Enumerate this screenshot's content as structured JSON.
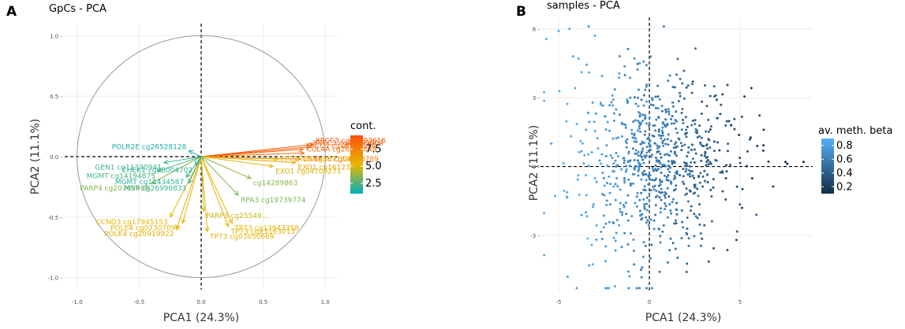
{
  "panels": {
    "a": {
      "letter": "A",
      "title": "GpCs - PCA"
    },
    "b": {
      "letter": "B",
      "title": "samples - PCA"
    }
  },
  "chart_data": [
    {
      "type": "scatter",
      "subtype": "pca-variable-correlation-circle",
      "title": "GpCs - PCA",
      "xlabel": "PCA1 (24.3%)",
      "ylabel": "PCA2 (11.1%)",
      "xlim": [
        -1.1,
        1.1
      ],
      "ylim": [
        -1.1,
        1.1
      ],
      "x_ticks": [
        "-1.0",
        "-0.5",
        "0.0",
        "0.5",
        "1.0"
      ],
      "y_ticks": [
        "-1.0 -",
        "-0.5 -",
        "0.0 -",
        "0.5 -",
        "1.0 -"
      ],
      "grid": true,
      "unit_circle": true,
      "legend": {
        "title": "cont.",
        "ticks": [
          "7.5",
          "5.0",
          "2.5"
        ],
        "placement": "right",
        "range": [
          1,
          9.5
        ],
        "colors": [
          "#00AFBB",
          "#E7B800",
          "#FC4E07"
        ]
      },
      "vectors": [
        {
          "label": "XRCC3 cg23193616",
          "x": 0.9,
          "y": 0.1,
          "contrib": 9.2
        },
        {
          "label": "XRCC3 cg25999604",
          "x": 0.88,
          "y": 0.08,
          "contrib": 9.0
        },
        {
          "label": "XRCC3 cg18597188",
          "x": 0.82,
          "y": 0.06,
          "contrib": 8.6
        },
        {
          "label": "CUL4A cg26825849",
          "x": 0.83,
          "y": 0.03,
          "contrib": 8.4
        },
        {
          "label": "GSNK1E cg04728789",
          "x": 0.8,
          "y": -0.02,
          "contrib": 7.8
        },
        {
          "label": "EXO1 cg16123177",
          "x": 0.76,
          "y": -0.05,
          "contrib": 6.2
        },
        {
          "label": "PPP1R19 cg00775920",
          "x": 0.62,
          "y": -0.02,
          "contrib": 5.4
        },
        {
          "label": "EXO1 cg04706271",
          "x": 0.58,
          "y": -0.08,
          "contrib": 5.0
        },
        {
          "label": "cg14289863",
          "x": 0.4,
          "y": -0.18,
          "contrib": 3.6
        },
        {
          "label": "RPA3 cg19739774",
          "x": 0.3,
          "y": -0.32,
          "contrib": 3.3
        },
        {
          "label": "TP73 cg13943358",
          "x": 0.25,
          "y": -0.55,
          "contrib": 5.3
        },
        {
          "label": "TP73 cg23163013",
          "x": 0.22,
          "y": -0.58,
          "contrib": 5.6
        },
        {
          "label": "TP73 cg03050669",
          "x": 0.05,
          "y": -0.62,
          "contrib": 5.5
        },
        {
          "label": "PARP3 cg25549...",
          "x": 0.02,
          "y": -0.45,
          "contrib": 4.8
        },
        {
          "label": "POLE4 cg02307096",
          "x": -0.15,
          "y": -0.55,
          "contrib": 5.5
        },
        {
          "label": "POLE4 cg20919922",
          "x": -0.2,
          "y": -0.6,
          "contrib": 5.8
        },
        {
          "label": "CCND3 cg17945153",
          "x": -0.25,
          "y": -0.5,
          "contrib": 5.2
        },
        {
          "label": "PARP4 cg20765408",
          "x": -0.4,
          "y": -0.22,
          "contrib": 3.4
        },
        {
          "label": "MVP cg26990833",
          "x": -0.1,
          "y": -0.22,
          "contrib": 2.0
        },
        {
          "label": "MGMT cg14194875",
          "x": -0.35,
          "y": -0.12,
          "contrib": 2.4
        },
        {
          "label": "MGMT cg12434587",
          "x": -0.12,
          "y": -0.17,
          "contrib": 1.7
        },
        {
          "label": "GEN1 cg11330941",
          "x": -0.3,
          "y": -0.05,
          "contrib": 2.0
        },
        {
          "label": "POLR2E cg26528128",
          "x": -0.1,
          "y": 0.05,
          "contrib": 1.5
        },
        {
          "label": "CHEK1 cg06004702",
          "x": -0.05,
          "y": -0.07,
          "contrib": 1.9
        }
      ]
    },
    {
      "type": "scatter",
      "title": "samples - PCA",
      "xlabel": "PCA1 (24.3%)",
      "ylabel": "PCA2 (11.1%)",
      "xlim": [
        -6,
        9
      ],
      "ylim": [
        -5.5,
        6.5
      ],
      "x_ticks": [
        "-5",
        "0",
        "5"
      ],
      "y_ticks": [
        "6 -",
        "3 -",
        "0 -",
        "-3 -"
      ],
      "grid": true,
      "legend": {
        "title": "av. meth. beta",
        "ticks": [
          "0.8",
          "0.6",
          "0.4",
          "0.2"
        ],
        "placement": "right",
        "range": [
          0.1,
          0.9
        ],
        "colors": [
          "#132B43",
          "#56B1F7"
        ]
      },
      "point_summary": "about 800 sample points, lighter blue toward negative PCA1, darker navy toward positive PCA1",
      "points": [
        {
          "x": -5.0,
          "y": 5.9,
          "beta": 0.85
        },
        {
          "x": -4.4,
          "y": 6.0,
          "beta": 0.85
        },
        {
          "x": -3.0,
          "y": 5.7,
          "beta": 0.83
        },
        {
          "x": -4.2,
          "y": 4.8,
          "beta": 0.82
        },
        {
          "x": -3.9,
          "y": 4.7,
          "beta": 0.8
        },
        {
          "x": -5.4,
          "y": 1.0,
          "beta": 0.78
        },
        {
          "x": -4.5,
          "y": -4.8,
          "beta": 0.8
        },
        {
          "x": -4.0,
          "y": -5.3,
          "beta": 0.78
        },
        {
          "x": -0.4,
          "y": -4.4,
          "beta": 0.55
        },
        {
          "x": 0.1,
          "y": 2.7,
          "beta": 0.5
        },
        {
          "x": 1.5,
          "y": 4.0,
          "beta": 0.45
        },
        {
          "x": 2.4,
          "y": 3.7,
          "beta": 0.42
        },
        {
          "x": 4.5,
          "y": 1.8,
          "beta": 0.25
        },
        {
          "x": 6.3,
          "y": 1.6,
          "beta": 0.2
        },
        {
          "x": 7.5,
          "y": 0.2,
          "beta": 0.15
        },
        {
          "x": 8.5,
          "y": 0.2,
          "beta": 0.12
        },
        {
          "x": 5.9,
          "y": -2.1,
          "beta": 0.45
        },
        {
          "x": 4.8,
          "y": -3.2,
          "beta": 0.3
        }
      ]
    }
  ]
}
